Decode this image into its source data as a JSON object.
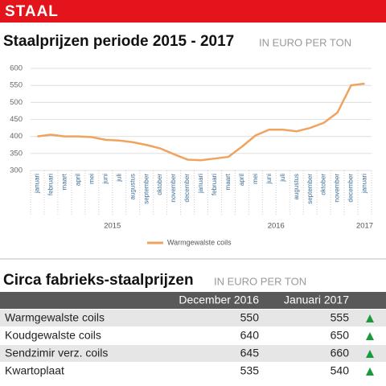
{
  "header": {
    "title": "STAAL"
  },
  "chart_data": {
    "type": "line",
    "title": "Staalprijzen periode 2015 - 2017",
    "subtitle": "IN EURO PER TON",
    "categories": [
      "januari",
      "februari",
      "maart",
      "april",
      "mei",
      "juni",
      "juli",
      "augustus",
      "september",
      "oktober",
      "november",
      "december",
      "januari",
      "februari",
      "maart",
      "april",
      "mei",
      "juni",
      "juli",
      "augustus",
      "september",
      "oktober",
      "november",
      "december",
      "januari"
    ],
    "year_labels": [
      "2015",
      "2016",
      "2017"
    ],
    "series": [
      {
        "name": "Warmgewalste coils",
        "color": "#f0a35e",
        "values": [
          400,
          405,
          400,
          400,
          398,
          390,
          388,
          383,
          375,
          365,
          348,
          332,
          330,
          335,
          340,
          370,
          403,
          420,
          420,
          415,
          425,
          440,
          470,
          550,
          555
        ]
      }
    ],
    "ylim": [
      300,
      600
    ],
    "yticks": [
      300,
      350,
      400,
      450,
      500,
      550,
      600
    ],
    "grid": true
  },
  "table": {
    "title": "Circa fabrieks-staalprijzen",
    "subtitle": "IN EURO PER TON",
    "columns": [
      "December 2016",
      "Januari 2017"
    ],
    "rows": [
      [
        "Warmgewalste coils",
        550,
        555
      ],
      [
        "Koudgewalste coils",
        640,
        650
      ],
      [
        "Sendzimir verz. coils",
        645,
        660
      ],
      [
        "Kwartoplaat",
        535,
        540
      ]
    ]
  }
}
